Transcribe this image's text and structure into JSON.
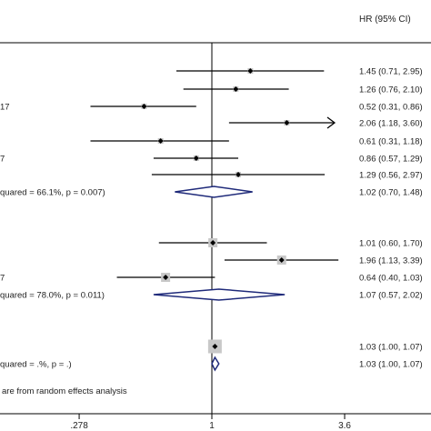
{
  "chart_data": {
    "type": "forest",
    "header": "HR (95% CI)",
    "x_axis": {
      "ticks": [
        0.278,
        1,
        3.6
      ],
      "tick_labels": [
        ".278",
        "1",
        "3.6"
      ],
      "scale": "log"
    },
    "rows": [
      {
        "label": "",
        "hr": 1.45,
        "lo": 0.71,
        "hi": 2.95,
        "ci_text": "1.45 (0.71, 2.95)"
      },
      {
        "label": "",
        "hr": 1.26,
        "lo": 0.76,
        "hi": 2.1,
        "ci_text": "1.26 (0.76, 2.10)"
      },
      {
        "label": "17",
        "hr": 0.52,
        "lo": 0.31,
        "hi": 0.86,
        "ci_text": "0.52 (0.31, 0.86)"
      },
      {
        "label": "",
        "hr": 2.06,
        "lo": 1.18,
        "hi": 3.6,
        "ci_text": "2.06 (1.18, 3.60)",
        "arrow": true
      },
      {
        "label": "",
        "hr": 0.61,
        "lo": 0.31,
        "hi": 1.18,
        "ci_text": "0.61 (0.31, 1.18)"
      },
      {
        "label": "7",
        "hr": 0.86,
        "lo": 0.57,
        "hi": 1.29,
        "ci_text": "0.86 (0.57, 1.29)"
      },
      {
        "label": "",
        "hr": 1.29,
        "lo": 0.56,
        "hi": 2.97,
        "ci_text": "1.29 (0.56, 2.97)"
      },
      {
        "label": "quared = 66.1%, p = 0.007)",
        "hr": 1.02,
        "lo": 0.7,
        "hi": 1.48,
        "ci_text": "1.02 (0.70, 1.48)",
        "diamond": true
      },
      {
        "label": "",
        "hr": 1.01,
        "lo": 0.6,
        "hi": 1.7,
        "ci_text": "1.01 (0.60, 1.70)"
      },
      {
        "label": "",
        "hr": 1.96,
        "lo": 1.13,
        "hi": 3.39,
        "ci_text": "1.96 (1.13, 3.39)"
      },
      {
        "label": "7",
        "hr": 0.64,
        "lo": 0.4,
        "hi": 1.03,
        "ci_text": "0.64 (0.40, 1.03)"
      },
      {
        "label": "quared = 78.0%, p = 0.011)",
        "hr": 1.07,
        "lo": 0.57,
        "hi": 2.02,
        "ci_text": "1.07 (0.57, 2.02)",
        "diamond": true
      },
      {
        "label": "",
        "hr": 1.03,
        "lo": 1.0,
        "hi": 1.07,
        "ci_text": "1.03 (1.00, 1.07)"
      },
      {
        "label": "quared = .%, p = .)",
        "hr": 1.03,
        "lo": 1.0,
        "hi": 1.07,
        "ci_text": "1.03 (1.00, 1.07)",
        "diamond": true
      }
    ],
    "footnote": "are from random effects analysis",
    "colors": {
      "diamond": "#1f2a7a",
      "box": "#c8c8c8",
      "line": "#000000"
    }
  }
}
